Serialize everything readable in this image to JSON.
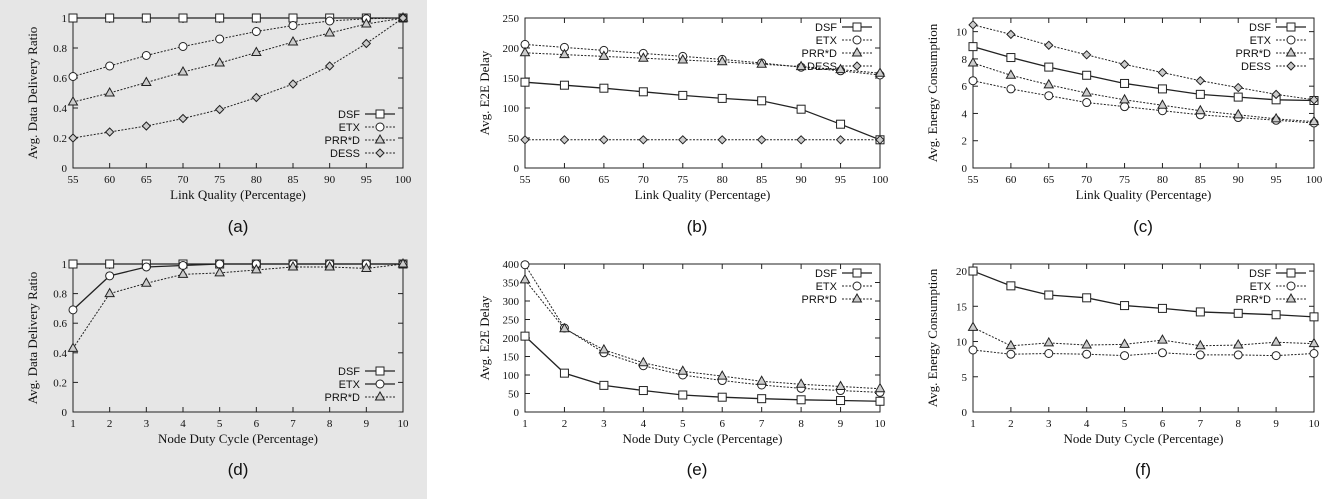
{
  "chart_data": [
    {
      "id": "a",
      "type": "line",
      "caption": "(a)",
      "xlabel": "Link Quality (Percentage)",
      "ylabel": "Avg. Data Delivery Ratio",
      "x": [
        55,
        60,
        65,
        70,
        75,
        80,
        85,
        90,
        95,
        100
      ],
      "xticks": [
        55,
        60,
        65,
        70,
        75,
        80,
        85,
        90,
        95,
        100
      ],
      "xlim": [
        55,
        100
      ],
      "yticks": [
        0,
        0.2,
        0.4,
        0.6,
        0.8,
        1
      ],
      "ytick_labels": [
        "0",
        "0.2",
        "0.4",
        "0.6",
        "0.8",
        "1"
      ],
      "ylim": [
        0,
        1
      ],
      "legend_position": "bottom-right",
      "series": [
        {
          "name": "DSF",
          "marker": "square",
          "line": "solid",
          "values": [
            1,
            1,
            1,
            1,
            1,
            1,
            1,
            1,
            1,
            1
          ]
        },
        {
          "name": "ETX",
          "marker": "circle",
          "line": "dotted",
          "values": [
            0.61,
            0.68,
            0.75,
            0.81,
            0.86,
            0.91,
            0.95,
            0.98,
            0.995,
            1
          ]
        },
        {
          "name": "PRR*D",
          "marker": "triangle",
          "line": "dotted",
          "values": [
            0.44,
            0.5,
            0.57,
            0.64,
            0.7,
            0.77,
            0.84,
            0.9,
            0.96,
            1
          ]
        },
        {
          "name": "DESS",
          "marker": "diamond",
          "line": "dotted",
          "values": [
            0.2,
            0.24,
            0.28,
            0.33,
            0.39,
            0.47,
            0.56,
            0.68,
            0.83,
            1
          ]
        }
      ]
    },
    {
      "id": "b",
      "type": "line",
      "caption": "(b)",
      "xlabel": "Link Quality (Percentage)",
      "ylabel": "Avg. E2E Delay",
      "x": [
        55,
        60,
        65,
        70,
        75,
        80,
        85,
        90,
        95,
        100
      ],
      "xticks": [
        55,
        60,
        65,
        70,
        75,
        80,
        85,
        90,
        95,
        100
      ],
      "xlim": [
        55,
        100
      ],
      "yticks": [
        0,
        50,
        100,
        150,
        200,
        250
      ],
      "ytick_labels": [
        "0",
        "50",
        "100",
        "150",
        "200",
        "250"
      ],
      "ylim": [
        0,
        250
      ],
      "legend_position": "top-right",
      "series": [
        {
          "name": "DSF",
          "marker": "square",
          "line": "solid",
          "values": [
            143,
            138,
            133,
            127,
            121,
            116,
            112,
            98,
            73,
            47
          ]
        },
        {
          "name": "ETX",
          "marker": "circle",
          "line": "dotted",
          "values": [
            206,
            201,
            196,
            191,
            186,
            181,
            175,
            168,
            162,
            155
          ]
        },
        {
          "name": "PRR*D",
          "marker": "triangle",
          "line": "dotted",
          "values": [
            192,
            189,
            186,
            183,
            180,
            177,
            173,
            169,
            164,
            158
          ]
        },
        {
          "name": "DESS",
          "marker": "diamond",
          "line": "dotted",
          "values": [
            47,
            47,
            47,
            47,
            47,
            47,
            47,
            47,
            47,
            47
          ]
        }
      ]
    },
    {
      "id": "c",
      "type": "line",
      "caption": "(c)",
      "xlabel": "Link Quality (Percentage)",
      "ylabel": "Avg. Energy Consumption",
      "x": [
        55,
        60,
        65,
        70,
        75,
        80,
        85,
        90,
        95,
        100
      ],
      "xticks": [
        55,
        60,
        65,
        70,
        75,
        80,
        85,
        90,
        95,
        100
      ],
      "xlim": [
        55,
        100
      ],
      "yticks": [
        0,
        2,
        4,
        6,
        8,
        10
      ],
      "ytick_labels": [
        "0",
        "2",
        "4",
        "6",
        "8",
        "10"
      ],
      "ylim": [
        0,
        11
      ],
      "legend_position": "top-right",
      "series": [
        {
          "name": "DSF",
          "marker": "square",
          "line": "solid",
          "values": [
            8.9,
            8.1,
            7.4,
            6.8,
            6.2,
            5.8,
            5.4,
            5.2,
            5.0,
            4.95
          ]
        },
        {
          "name": "ETX",
          "marker": "circle",
          "line": "dotted",
          "values": [
            6.4,
            5.8,
            5.3,
            4.8,
            4.5,
            4.2,
            3.9,
            3.7,
            3.5,
            3.3
          ]
        },
        {
          "name": "PRR*D",
          "marker": "triangle",
          "line": "dotted",
          "values": [
            7.7,
            6.8,
            6.1,
            5.5,
            5.0,
            4.6,
            4.2,
            3.9,
            3.6,
            3.4
          ]
        },
        {
          "name": "DESS",
          "marker": "diamond",
          "line": "dotted",
          "values": [
            10.5,
            9.8,
            9.0,
            8.3,
            7.6,
            7.0,
            6.4,
            5.9,
            5.4,
            5.0
          ]
        }
      ]
    },
    {
      "id": "d",
      "type": "line",
      "caption": "(d)",
      "xlabel": "Node Duty Cycle (Percentage)",
      "ylabel": "Avg. Data Delivery Ratio",
      "x": [
        1,
        2,
        3,
        4,
        5,
        6,
        7,
        8,
        9,
        10
      ],
      "xticks": [
        1,
        2,
        3,
        4,
        5,
        6,
        7,
        8,
        9,
        10
      ],
      "xlim": [
        1,
        10
      ],
      "yticks": [
        0,
        0.2,
        0.4,
        0.6,
        0.8,
        1
      ],
      "ytick_labels": [
        "0",
        "0.2",
        "0.4",
        "0.6",
        "0.8",
        "1"
      ],
      "ylim": [
        0,
        1
      ],
      "legend_position": "bottom-right",
      "series": [
        {
          "name": "DSF",
          "marker": "square",
          "line": "solid",
          "values": [
            1,
            1,
            1,
            1,
            1,
            1,
            1,
            1,
            1,
            1
          ]
        },
        {
          "name": "ETX",
          "marker": "circle",
          "line": "solid",
          "values": [
            0.69,
            0.92,
            0.98,
            0.99,
            1,
            1,
            1,
            1,
            1,
            1
          ]
        },
        {
          "name": "PRR*D",
          "marker": "triangle",
          "line": "dotted",
          "values": [
            0.43,
            0.8,
            0.87,
            0.93,
            0.94,
            0.96,
            0.98,
            0.98,
            0.97,
            1
          ]
        }
      ]
    },
    {
      "id": "e",
      "type": "line",
      "caption": "(e)",
      "xlabel": "Node Duty Cycle (Percentage)",
      "ylabel": "Avg. E2E Delay",
      "x": [
        1,
        2,
        3,
        4,
        5,
        6,
        7,
        8,
        9,
        10
      ],
      "xticks": [
        1,
        2,
        3,
        4,
        5,
        6,
        7,
        8,
        9,
        10
      ],
      "xlim": [
        1,
        10
      ],
      "yticks": [
        0,
        50,
        100,
        150,
        200,
        250,
        300,
        350,
        400
      ],
      "ytick_labels": [
        "0",
        "50",
        "100",
        "150",
        "200",
        "250",
        "300",
        "350",
        "400"
      ],
      "ylim": [
        0,
        400
      ],
      "legend_position": "top-right",
      "series": [
        {
          "name": "DSF",
          "marker": "square",
          "line": "solid",
          "values": [
            205,
            105,
            72,
            58,
            46,
            40,
            36,
            33,
            31,
            29
          ]
        },
        {
          "name": "ETX",
          "marker": "circle",
          "line": "dotted",
          "values": [
            398,
            227,
            160,
            125,
            100,
            85,
            73,
            64,
            58,
            53
          ]
        },
        {
          "name": "PRR*D",
          "marker": "triangle",
          "line": "dotted",
          "values": [
            357,
            225,
            168,
            133,
            110,
            97,
            83,
            75,
            69,
            63
          ]
        }
      ]
    },
    {
      "id": "f",
      "type": "line",
      "caption": "(f)",
      "xlabel": "Node Duty Cycle (Percentage)",
      "ylabel": "Avg. Energy Consumption",
      "x": [
        1,
        2,
        3,
        4,
        5,
        6,
        7,
        8,
        9,
        10
      ],
      "xticks": [
        1,
        2,
        3,
        4,
        5,
        6,
        7,
        8,
        9,
        10
      ],
      "xlim": [
        1,
        10
      ],
      "yticks": [
        0,
        5,
        10,
        15,
        20
      ],
      "ytick_labels": [
        "0",
        "5",
        "10",
        "15",
        "20"
      ],
      "ylim": [
        0,
        21
      ],
      "legend_position": "top-right",
      "series": [
        {
          "name": "DSF",
          "marker": "square",
          "line": "solid",
          "values": [
            20,
            17.9,
            16.6,
            16.2,
            15.1,
            14.7,
            14.2,
            14.0,
            13.8,
            13.5
          ]
        },
        {
          "name": "ETX",
          "marker": "circle",
          "line": "dotted",
          "values": [
            8.8,
            8.2,
            8.3,
            8.2,
            8.0,
            8.4,
            8.1,
            8.1,
            8.0,
            8.3
          ]
        },
        {
          "name": "PRR*D",
          "marker": "triangle",
          "line": "dotted",
          "values": [
            12.0,
            9.4,
            9.8,
            9.5,
            9.6,
            10.2,
            9.4,
            9.5,
            9.9,
            9.7
          ]
        }
      ]
    }
  ]
}
